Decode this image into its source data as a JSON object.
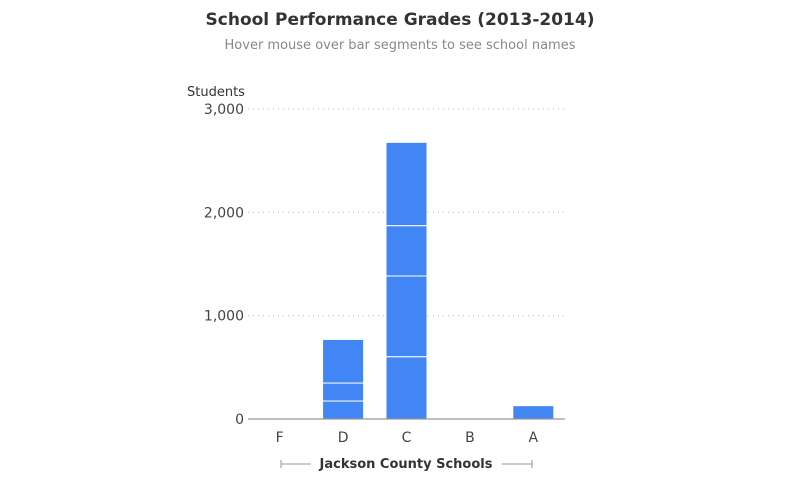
{
  "chart_data": {
    "type": "bar",
    "stacked": true,
    "title": "School Performance Grades (2013-2014)",
    "subtitle": "Hover mouse over bar segments to see school names",
    "ylabel": "Students",
    "xlabel": "Jackson County Schools",
    "ylim": [
      0,
      3000
    ],
    "yticks": [
      0,
      1000,
      2000,
      3000
    ],
    "ytick_labels": [
      "0",
      "1,000",
      "2,000",
      "3,000"
    ],
    "categories": [
      "F",
      "D",
      "C",
      "B",
      "A"
    ],
    "segments": [
      [],
      [
        174,
        174,
        422
      ],
      [
        603,
        781,
        487,
        806
      ],
      [],
      [
        129
      ]
    ],
    "color": "#4285f4",
    "grid": true
  }
}
